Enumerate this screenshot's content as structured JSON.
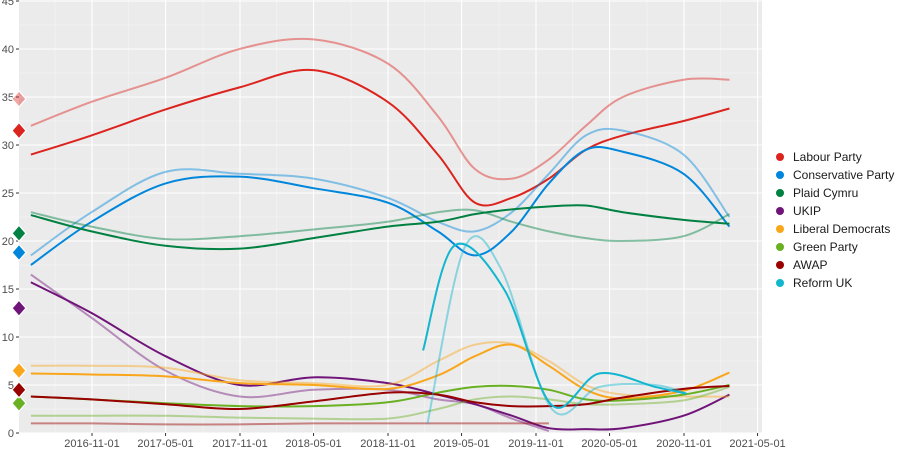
{
  "chart_data": {
    "type": "line",
    "title": "",
    "xlabel": "",
    "ylabel": "",
    "ylim": [
      0,
      45
    ],
    "xlim_year": [
      2016.35,
      2021.3
    ],
    "y_ticks": [
      "0",
      "5",
      "10",
      "15",
      "20",
      "25",
      "30",
      "35",
      "40",
      "45"
    ],
    "x_ticks": [
      {
        "label": "2016-11-01",
        "year": 2016.833
      },
      {
        "label": "2017-05-01",
        "year": 2017.33
      },
      {
        "label": "2017-11-01",
        "year": 2017.833
      },
      {
        "label": "2018-05-01",
        "year": 2018.33
      },
      {
        "label": "2018-11-01",
        "year": 2018.833
      },
      {
        "label": "2019-05-01",
        "year": 2019.33
      },
      {
        "label": "2019-11-01",
        "year": 2019.833
      },
      {
        "label": "2020-05-01",
        "year": 2020.33
      },
      {
        "label": "2020-11-01",
        "year": 2020.833
      },
      {
        "label": "2021-05-01",
        "year": 2021.33
      }
    ],
    "grid": true,
    "legend_position": "right",
    "x": [
      2016.42,
      2016.83,
      2017.33,
      2017.83,
      2018.33,
      2018.83,
      2019.17,
      2019.42,
      2019.67,
      2019.92,
      2020.17,
      2020.42,
      2020.83,
      2021.14
    ],
    "series": [
      {
        "name": "Labour Party",
        "color": "#DC241F",
        "marker": 31.5,
        "marker_light": 34.8,
        "values": [
          29,
          31,
          33.7,
          36,
          37.8,
          34.5,
          29,
          24,
          24.5,
          26.5,
          29.5,
          31,
          32.5,
          33.8
        ],
        "light": [
          32,
          34.5,
          37,
          40,
          41,
          38.5,
          33,
          27.5,
          26.5,
          28.5,
          32,
          35,
          36.8,
          36.8
        ]
      },
      {
        "name": "Conservative Party",
        "color": "#0087DC",
        "marker": 18.8,
        "values": [
          17.5,
          22,
          26,
          26.7,
          25.5,
          24,
          21,
          18.5,
          21,
          26,
          29.5,
          29.3,
          27,
          21.5
        ],
        "light": [
          18.5,
          23,
          27.2,
          27,
          26.5,
          24.5,
          22,
          21,
          23,
          27,
          31,
          31.5,
          29,
          22.5
        ]
      },
      {
        "name": "Plaid Cymru",
        "color": "#008142",
        "marker": 20.8,
        "values": [
          22.7,
          21,
          19.5,
          19.2,
          20.3,
          21.5,
          22,
          22.8,
          23.3,
          23.6,
          23.7,
          23,
          22.2,
          21.8
        ],
        "light": [
          23,
          21.5,
          20.2,
          20.5,
          21.2,
          22,
          23,
          23.2,
          22,
          21,
          20.3,
          20,
          20.5,
          22.8
        ]
      },
      {
        "name": "UKIP",
        "color": "#70147A",
        "marker": 13,
        "values": [
          15.7,
          12.5,
          8,
          5,
          5.8,
          5.2,
          4,
          3,
          1.8,
          0.5,
          0.4,
          0.5,
          1.8,
          4
        ],
        "light": [
          16.5,
          12,
          6.5,
          3.8,
          4.5,
          4.5,
          3.5,
          3,
          1.5,
          0.2
        ]
      },
      {
        "name": "Liberal Democrats",
        "color": "#FAA61A",
        "marker": 6.5,
        "values": [
          6.2,
          6.1,
          5.9,
          5.2,
          5,
          4.6,
          6,
          8,
          9.2,
          7,
          4.5,
          3.6,
          4.4,
          6.3
        ],
        "light": [
          7,
          7,
          6.8,
          5.5,
          5.2,
          5,
          7.5,
          9.2,
          9.3,
          7.5,
          5,
          4,
          3.8,
          3.8
        ]
      },
      {
        "name": "Green Party",
        "color": "#6AB023",
        "marker": 3.1,
        "values": [
          3.8,
          3.5,
          3.1,
          2.8,
          2.8,
          3.2,
          4.2,
          4.8,
          4.9,
          4.5,
          3.5,
          3.4,
          4,
          5
        ],
        "light": [
          1.8,
          1.8,
          1.8,
          1.6,
          1.5,
          1.5,
          2.5,
          3.5,
          3.8,
          3.5,
          3,
          3,
          3.4,
          4.8
        ]
      },
      {
        "name": "AWAP",
        "color": "#990000",
        "marker": 4.5,
        "values": [
          3.8,
          3.5,
          3,
          2.5,
          3.3,
          4.2,
          4,
          3.2,
          2.8,
          2.8,
          3,
          3.7,
          4.6,
          4.9
        ],
        "light": [
          1,
          1,
          0.9,
          0.9,
          1,
          1,
          1,
          1,
          1,
          1
        ]
      },
      {
        "name": "Reform UK",
        "color": "#12B6CF",
        "x": [
          2019.07,
          2019.28,
          2019.62,
          2019.94,
          2020.26,
          2020.64,
          2020.85
        ],
        "values": [
          8.6,
          19.5,
          14.9,
          2.9,
          6.2,
          4.8,
          4.1
        ],
        "light_x": [
          2019.1,
          2019.35,
          2019.6,
          2019.94,
          2020.26,
          2020.64,
          2020.85
        ],
        "light": [
          1,
          19.3,
          17,
          2.5,
          4.8,
          5,
          4.1
        ]
      }
    ]
  }
}
